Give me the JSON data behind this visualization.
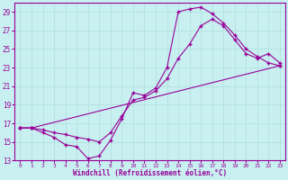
{
  "title": "",
  "xlabel": "Windchill (Refroidissement éolien,°C)",
  "ylabel": "",
  "bg_color": "#c8f0f0",
  "line_color": "#990099",
  "grid_color": "#b0dede",
  "xlim": [
    -0.5,
    23.5
  ],
  "ylim": [
    13,
    30
  ],
  "yticks": [
    13,
    15,
    17,
    19,
    21,
    23,
    25,
    27,
    29
  ],
  "xticks": [
    0,
    1,
    2,
    3,
    4,
    5,
    6,
    7,
    8,
    9,
    10,
    11,
    12,
    13,
    14,
    15,
    16,
    17,
    18,
    19,
    20,
    21,
    22,
    23
  ],
  "series1_x": [
    0,
    1,
    2,
    3,
    4,
    5,
    6,
    7,
    8,
    9,
    10,
    11,
    12,
    13,
    14,
    15,
    16,
    17,
    18,
    19,
    20,
    21,
    22,
    23
  ],
  "series1_y": [
    16.5,
    16.5,
    16.0,
    15.5,
    14.7,
    14.5,
    13.2,
    13.5,
    15.2,
    17.5,
    20.3,
    20.0,
    20.8,
    23.0,
    29.0,
    29.3,
    29.5,
    28.8,
    27.8,
    26.5,
    25.0,
    24.2,
    23.5,
    23.2
  ],
  "series2_x": [
    0,
    1,
    2,
    3,
    4,
    5,
    6,
    7,
    8,
    9,
    10,
    11,
    12,
    13,
    14,
    15,
    16,
    17,
    18,
    19,
    20,
    21,
    22,
    23
  ],
  "series2_y": [
    16.5,
    16.5,
    16.3,
    16.0,
    15.8,
    15.5,
    15.3,
    15.0,
    16.0,
    17.8,
    19.5,
    19.8,
    20.5,
    21.8,
    24.0,
    25.5,
    27.5,
    28.2,
    27.5,
    26.0,
    24.5,
    24.0,
    24.5,
    23.5
  ],
  "series3_x": [
    0,
    1,
    23
  ],
  "series3_y": [
    16.5,
    16.5,
    23.2
  ]
}
